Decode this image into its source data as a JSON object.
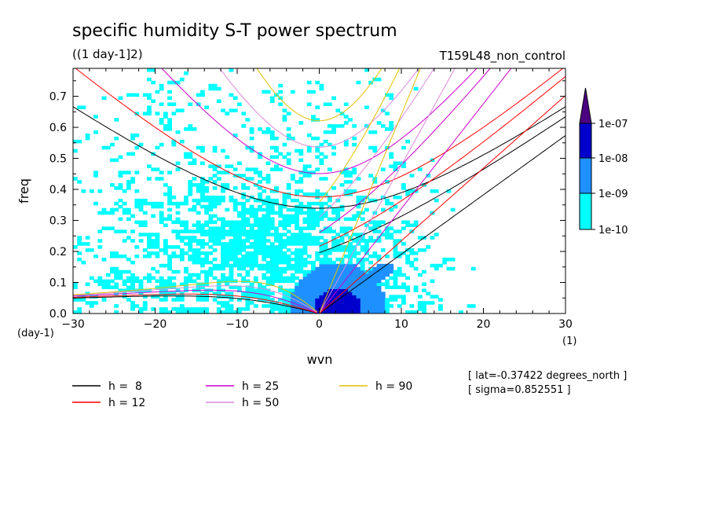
{
  "chart_data": {
    "type": "heatmap",
    "title": "specific humidity S-T power spectrum",
    "subtitle": "((1 day-1]2)",
    "run_label": "T159L48_non_control",
    "xlabel": "wvn",
    "ylabel": "freq",
    "x_unit": "(1)",
    "y_unit": "(day-1)",
    "xlim": [
      -30,
      30
    ],
    "ylim": [
      0,
      0.79
    ],
    "xticks": [
      -30,
      -20,
      -10,
      0,
      10,
      20,
      30
    ],
    "yticks": [
      0.0,
      0.1,
      0.2,
      0.3,
      0.4,
      0.5,
      0.6,
      0.7
    ],
    "xtick_labels": [
      "−30",
      "−20",
      "−10",
      "0",
      "10",
      "20",
      "30"
    ],
    "ytick_labels": [
      "0.0",
      "0.1",
      "0.2",
      "0.3",
      "0.4",
      "0.5",
      "0.6",
      "0.7"
    ],
    "colorbar": {
      "levels": [
        "1e-10",
        "1e-09",
        "1e-08",
        "1e-07"
      ],
      "colors": [
        "#00ffff",
        "#1e90ff",
        "#0000cd",
        "#4b0082"
      ]
    },
    "series": [
      {
        "name": "h =  8",
        "h": 8,
        "color": "#000000"
      },
      {
        "name": "h = 12",
        "h": 12,
        "color": "#ff0000"
      },
      {
        "name": "h = 25",
        "h": 25,
        "color": "#cc00cc"
      },
      {
        "name": "h = 50",
        "h": 50,
        "color": "#dd88dd"
      },
      {
        "name": "h = 90",
        "h": 90,
        "color": "#e0c000"
      }
    ],
    "annotations": [
      "[ lat=-0.37422 degrees_north ]",
      "[ sigma=0.852551 ]"
    ]
  }
}
